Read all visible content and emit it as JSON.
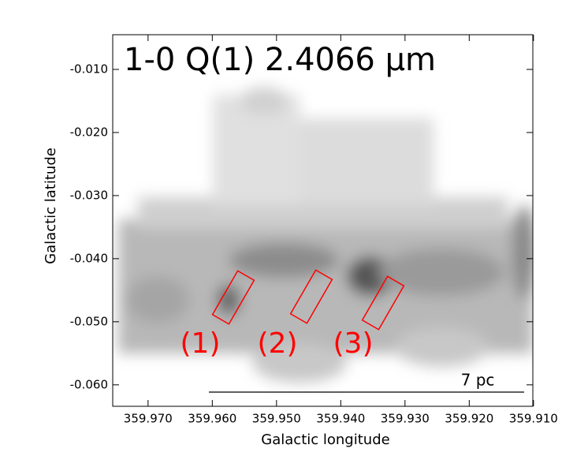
{
  "chart_data": {
    "type": "image",
    "title": "1-0 Q(1) 2.4066 μm",
    "x_label": "Galactic longitude",
    "y_label": "Galactic latitude",
    "xlim": [
      359.9755,
      359.9101
    ],
    "ylim": [
      -0.0634,
      -0.0045
    ],
    "xticks": [
      {
        "value": 359.97,
        "label": "359.970"
      },
      {
        "value": 359.96,
        "label": "359.960"
      },
      {
        "value": 359.95,
        "label": "359.950"
      },
      {
        "value": 359.94,
        "label": "359.940"
      },
      {
        "value": 359.93,
        "label": "359.930"
      },
      {
        "value": 359.92,
        "label": "359.920"
      },
      {
        "value": 359.91,
        "label": "359.910"
      }
    ],
    "yticks": [
      {
        "value": -0.01,
        "label": "-0.010"
      },
      {
        "value": -0.02,
        "label": "-0.020"
      },
      {
        "value": -0.03,
        "label": "-0.030"
      },
      {
        "value": -0.04,
        "label": "-0.040"
      },
      {
        "value": -0.05,
        "label": "-0.050"
      },
      {
        "value": -0.06,
        "label": "-0.060"
      }
    ],
    "annotations": [
      "(1)",
      "(2)",
      "(3)"
    ],
    "scale_bar_label": "7 pc"
  }
}
